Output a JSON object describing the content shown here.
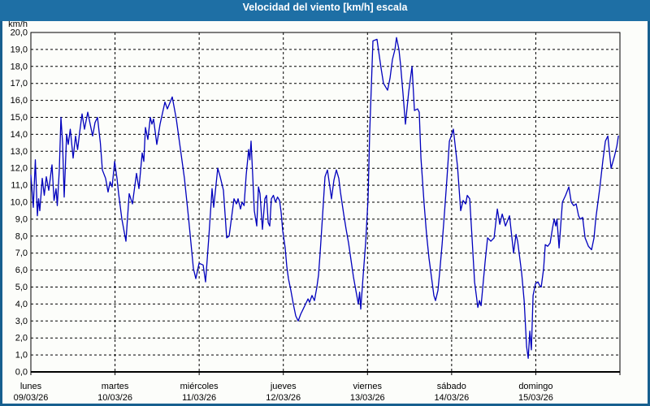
{
  "window": {
    "title": "Velocidad del viento [km/h] escala"
  },
  "colors": {
    "titlebar": "#1e6fa5",
    "frame": "#175f8f",
    "content_bg": "#fcfdfa",
    "line": "#0000bd",
    "grid": "#000000",
    "text": "#000000"
  },
  "chart_data": {
    "type": "line",
    "title": "Velocidad del viento [km/h] escala",
    "ylabel": "km/h",
    "ylim": [
      0,
      20
    ],
    "y_tick_step": 1,
    "y_tick_labels": [
      "0,0",
      "1,0",
      "2,0",
      "3,0",
      "4,0",
      "5,0",
      "6,0",
      "7,0",
      "8,0",
      "9,0",
      "10,0",
      "11,0",
      "12,0",
      "13,0",
      "14,0",
      "15,0",
      "16,0",
      "17,0",
      "18,0",
      "19,0",
      "20,0"
    ],
    "x_range_days": [
      0,
      7
    ],
    "x_days": [
      {
        "name": "lunes",
        "date": "09/03/26"
      },
      {
        "name": "martes",
        "date": "10/03/26"
      },
      {
        "name": "miércoles",
        "date": "11/03/26"
      },
      {
        "name": "jueves",
        "date": "12/03/26"
      },
      {
        "name": "viernes",
        "date": "13/03/26"
      },
      {
        "name": "sábado",
        "date": "14/03/26"
      },
      {
        "name": "domingo",
        "date": "15/03/26"
      }
    ],
    "grid": "dashed",
    "legend": "none",
    "series": [
      {
        "name": "Velocidad del viento",
        "unit": "km/h",
        "color": "#0000bd",
        "points_t_days_vs_kmh": [
          [
            0.0,
            11.6
          ],
          [
            0.029,
            9.7
          ],
          [
            0.053,
            12.5
          ],
          [
            0.077,
            9.2
          ],
          [
            0.092,
            10.2
          ],
          [
            0.106,
            9.5
          ],
          [
            0.135,
            11.4
          ],
          [
            0.159,
            10.4
          ],
          [
            0.183,
            11.5
          ],
          [
            0.212,
            10.7
          ],
          [
            0.251,
            12.2
          ],
          [
            0.275,
            10.1
          ],
          [
            0.299,
            10.8
          ],
          [
            0.314,
            9.8
          ],
          [
            0.338,
            11.9
          ],
          [
            0.357,
            15.0
          ],
          [
            0.377,
            13.5
          ],
          [
            0.396,
            10.3
          ],
          [
            0.425,
            14.0
          ],
          [
            0.444,
            13.4
          ],
          [
            0.468,
            14.3
          ],
          [
            0.502,
            12.6
          ],
          [
            0.531,
            13.9
          ],
          [
            0.555,
            13.1
          ],
          [
            0.579,
            14.1
          ],
          [
            0.608,
            15.2
          ],
          [
            0.637,
            14.3
          ],
          [
            0.676,
            15.3
          ],
          [
            0.705,
            14.6
          ],
          [
            0.734,
            13.9
          ],
          [
            0.763,
            14.7
          ],
          [
            0.792,
            15.0
          ],
          [
            0.826,
            13.5
          ],
          [
            0.85,
            11.9
          ],
          [
            0.888,
            11.4
          ],
          [
            0.917,
            10.6
          ],
          [
            0.941,
            11.2
          ],
          [
            0.966,
            10.9
          ],
          [
            0.995,
            12.4
          ],
          [
            1.023,
            11.4
          ],
          [
            1.043,
            10.5
          ],
          [
            1.081,
            9.0
          ],
          [
            1.13,
            7.7
          ],
          [
            1.168,
            10.5
          ],
          [
            1.207,
            9.9
          ],
          [
            1.255,
            11.7
          ],
          [
            1.284,
            10.8
          ],
          [
            1.323,
            12.9
          ],
          [
            1.342,
            12.4
          ],
          [
            1.361,
            14.4
          ],
          [
            1.39,
            13.7
          ],
          [
            1.419,
            15.0
          ],
          [
            1.439,
            14.6
          ],
          [
            1.458,
            14.9
          ],
          [
            1.497,
            13.4
          ],
          [
            1.535,
            14.6
          ],
          [
            1.593,
            15.9
          ],
          [
            1.622,
            15.5
          ],
          [
            1.68,
            16.2
          ],
          [
            1.728,
            14.9
          ],
          [
            1.825,
            11.4
          ],
          [
            1.873,
            9.1
          ],
          [
            1.931,
            6.1
          ],
          [
            1.96,
            5.5
          ],
          [
            1.999,
            6.4
          ],
          [
            2.047,
            6.3
          ],
          [
            2.076,
            5.3
          ],
          [
            2.115,
            8.0
          ],
          [
            2.153,
            10.8
          ],
          [
            2.172,
            9.7
          ],
          [
            2.221,
            12.0
          ],
          [
            2.25,
            11.5
          ],
          [
            2.288,
            10.7
          ],
          [
            2.327,
            7.9
          ],
          [
            2.356,
            8.0
          ],
          [
            2.414,
            10.2
          ],
          [
            2.443,
            9.9
          ],
          [
            2.462,
            10.2
          ],
          [
            2.491,
            9.6
          ],
          [
            2.51,
            10.0
          ],
          [
            2.534,
            9.8
          ],
          [
            2.559,
            11.6
          ],
          [
            2.588,
            13.1
          ],
          [
            2.602,
            12.5
          ],
          [
            2.617,
            13.6
          ],
          [
            2.636,
            11.6
          ],
          [
            2.655,
            9.5
          ],
          [
            2.684,
            8.6
          ],
          [
            2.704,
            10.9
          ],
          [
            2.723,
            10.5
          ],
          [
            2.752,
            8.4
          ],
          [
            2.781,
            10.2
          ],
          [
            2.8,
            10.4
          ],
          [
            2.82,
            8.8
          ],
          [
            2.839,
            8.6
          ],
          [
            2.858,
            10.2
          ],
          [
            2.882,
            10.4
          ],
          [
            2.906,
            10.0
          ],
          [
            2.931,
            10.3
          ],
          [
            2.955,
            10.1
          ],
          [
            2.974,
            9.4
          ],
          [
            2.993,
            8.3
          ],
          [
            3.022,
            7.3
          ],
          [
            3.041,
            6.2
          ],
          [
            3.061,
            5.5
          ],
          [
            3.09,
            4.8
          ],
          [
            3.119,
            4.0
          ],
          [
            3.148,
            3.3
          ],
          [
            3.177,
            3.0
          ],
          [
            3.206,
            3.4
          ],
          [
            3.235,
            3.7
          ],
          [
            3.264,
            4.0
          ],
          [
            3.293,
            4.3
          ],
          [
            3.312,
            4.1
          ],
          [
            3.341,
            4.5
          ],
          [
            3.37,
            4.2
          ],
          [
            3.399,
            5.0
          ],
          [
            3.418,
            5.7
          ],
          [
            3.437,
            7.0
          ],
          [
            3.466,
            9.2
          ],
          [
            3.495,
            11.5
          ],
          [
            3.524,
            11.9
          ],
          [
            3.553,
            10.9
          ],
          [
            3.572,
            10.2
          ],
          [
            3.601,
            11.3
          ],
          [
            3.63,
            11.9
          ],
          [
            3.659,
            11.4
          ],
          [
            3.679,
            10.6
          ],
          [
            3.717,
            9.3
          ],
          [
            3.746,
            8.4
          ],
          [
            3.775,
            7.6
          ],
          [
            3.804,
            6.6
          ],
          [
            3.833,
            5.6
          ],
          [
            3.862,
            4.8
          ],
          [
            3.891,
            4.0
          ],
          [
            3.906,
            4.7
          ],
          [
            3.92,
            3.7
          ],
          [
            3.949,
            5.7
          ],
          [
            3.978,
            7.6
          ],
          [
            4.007,
            10.2
          ],
          [
            4.026,
            14.1
          ],
          [
            4.046,
            16.9
          ],
          [
            4.065,
            19.5
          ],
          [
            4.113,
            19.6
          ],
          [
            4.132,
            18.9
          ],
          [
            4.161,
            17.9
          ],
          [
            4.19,
            17.0
          ],
          [
            4.239,
            16.6
          ],
          [
            4.268,
            17.3
          ],
          [
            4.297,
            18.4
          ],
          [
            4.326,
            19.0
          ],
          [
            4.345,
            19.7
          ],
          [
            4.374,
            19.0
          ],
          [
            4.393,
            18.1
          ],
          [
            4.422,
            16.4
          ],
          [
            4.451,
            14.6
          ],
          [
            4.49,
            16.5
          ],
          [
            4.529,
            18.0
          ],
          [
            4.558,
            15.4
          ],
          [
            4.596,
            15.5
          ],
          [
            4.615,
            15.3
          ],
          [
            4.635,
            12.6
          ],
          [
            4.673,
            9.9
          ],
          [
            4.702,
            8.1
          ],
          [
            4.731,
            6.7
          ],
          [
            4.76,
            5.6
          ],
          [
            4.789,
            4.5
          ],
          [
            4.808,
            4.2
          ],
          [
            4.837,
            4.8
          ],
          [
            4.857,
            5.8
          ],
          [
            4.886,
            7.5
          ],
          [
            4.915,
            9.4
          ],
          [
            4.944,
            11.4
          ],
          [
            4.973,
            13.6
          ],
          [
            5.002,
            14.0
          ],
          [
            5.021,
            14.3
          ],
          [
            5.05,
            13.0
          ],
          [
            5.07,
            12.1
          ],
          [
            5.108,
            9.5
          ],
          [
            5.137,
            10.1
          ],
          [
            5.166,
            9.9
          ],
          [
            5.186,
            10.4
          ],
          [
            5.215,
            10.2
          ],
          [
            5.244,
            7.8
          ],
          [
            5.273,
            5.3
          ],
          [
            5.311,
            3.8
          ],
          [
            5.331,
            4.2
          ],
          [
            5.35,
            3.9
          ],
          [
            5.398,
            6.5
          ],
          [
            5.427,
            7.9
          ],
          [
            5.466,
            7.7
          ],
          [
            5.504,
            7.9
          ],
          [
            5.543,
            9.6
          ],
          [
            5.572,
            8.7
          ],
          [
            5.601,
            9.3
          ],
          [
            5.64,
            8.6
          ],
          [
            5.688,
            9.2
          ],
          [
            5.736,
            7.0
          ],
          [
            5.765,
            8.1
          ],
          [
            5.784,
            7.7
          ],
          [
            5.833,
            5.8
          ],
          [
            5.862,
            4.2
          ],
          [
            5.891,
            1.5
          ],
          [
            5.91,
            0.8
          ],
          [
            5.929,
            2.4
          ],
          [
            5.948,
            1.3
          ],
          [
            5.968,
            4.5
          ],
          [
            5.997,
            5.2
          ],
          [
            6.026,
            5.3
          ],
          [
            6.045,
            5.1
          ],
          [
            6.064,
            5.0
          ],
          [
            6.093,
            6.1
          ],
          [
            6.113,
            7.5
          ],
          [
            6.142,
            7.4
          ],
          [
            6.171,
            7.6
          ],
          [
            6.2,
            8.5
          ],
          [
            6.219,
            9.0
          ],
          [
            6.238,
            8.6
          ],
          [
            6.252,
            9.0
          ],
          [
            6.277,
            7.3
          ],
          [
            6.316,
            10.0
          ],
          [
            6.354,
            10.4
          ],
          [
            6.393,
            10.9
          ],
          [
            6.422,
            10.0
          ],
          [
            6.451,
            9.8
          ],
          [
            6.48,
            9.9
          ],
          [
            6.509,
            9.2
          ],
          [
            6.528,
            9.0
          ],
          [
            6.557,
            9.1
          ],
          [
            6.586,
            7.9
          ],
          [
            6.625,
            7.4
          ],
          [
            6.663,
            7.2
          ],
          [
            6.692,
            7.9
          ],
          [
            6.712,
            9.0
          ],
          [
            6.76,
            10.8
          ],
          [
            6.798,
            12.5
          ],
          [
            6.827,
            13.6
          ],
          [
            6.856,
            13.9
          ],
          [
            6.876,
            12.9
          ],
          [
            6.895,
            12.0
          ],
          [
            6.934,
            12.7
          ],
          [
            6.963,
            13.3
          ],
          [
            6.982,
            13.9
          ]
        ]
      }
    ]
  }
}
